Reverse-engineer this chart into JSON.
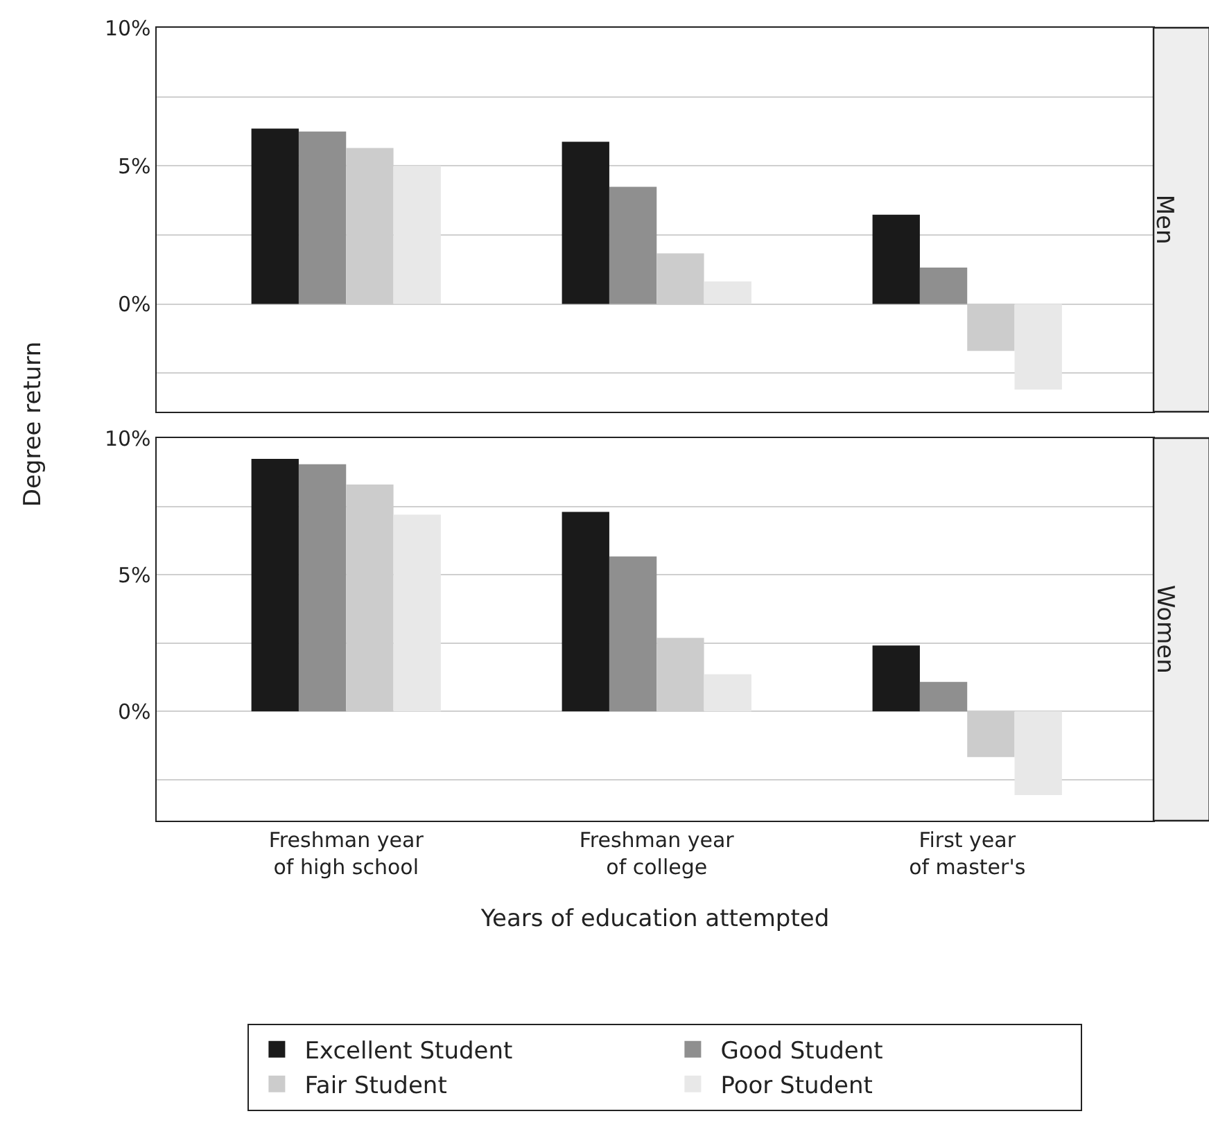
{
  "chart_data": [
    {
      "type": "bar",
      "title": "Men",
      "ylabel": "Degree return",
      "categories": [
        null,
        null,
        null
      ],
      "tick_labels": "y",
      "grid": true,
      "ylim": [
        -3.9,
        10
      ],
      "yticks": [
        {
          "value": -2.5,
          "label": null
        },
        {
          "value": 0,
          "label": "0%"
        },
        {
          "value": 2.5,
          "label": null
        },
        {
          "value": 5,
          "label": "5%"
        },
        {
          "value": 7.5,
          "label": null
        },
        {
          "value": 10,
          "label": "10%"
        }
      ],
      "series": [
        {
          "color": "#1a1a1a",
          "values": [
            6.35,
            5.87,
            3.23
          ]
        },
        {
          "color": "#8f8f8f",
          "values": [
            6.24,
            4.24,
            1.32
          ]
        },
        {
          "color": "#cccccc",
          "values": [
            5.65,
            1.83,
            -1.7
          ]
        },
        {
          "color": "#e8e8e8",
          "values": [
            5.0,
            0.82,
            -3.1
          ]
        }
      ]
    },
    {
      "type": "bar",
      "title": "Women",
      "xlabel": "Years of education attempted",
      "categories": [
        "Freshman year\nof high school",
        "Freshman year\nof college",
        "First year\nof master's"
      ],
      "grid": true,
      "legend": "bottom",
      "ylim": [
        -4,
        10
      ],
      "yticks": [
        {
          "value": -2.5,
          "label": null
        },
        {
          "value": 0,
          "label": "0%"
        },
        {
          "value": 2.5,
          "label": null
        },
        {
          "value": 5,
          "label": "5%"
        },
        {
          "value": 7.5,
          "label": null
        },
        {
          "value": 10,
          "label": "10%"
        }
      ],
      "series": [
        {
          "name": "Excellent Student",
          "color": "#1a1a1a",
          "values": [
            9.24,
            7.3,
            2.41
          ]
        },
        {
          "name": "Good Student",
          "color": "#8f8f8f",
          "values": [
            9.04,
            5.67,
            1.08
          ]
        },
        {
          "name": "Fair Student",
          "color": "#cccccc",
          "values": [
            8.3,
            2.69,
            -1.67
          ]
        },
        {
          "name": "Poor Student",
          "color": "#e8e8e8",
          "values": [
            7.2,
            1.36,
            -3.06
          ]
        }
      ]
    }
  ]
}
